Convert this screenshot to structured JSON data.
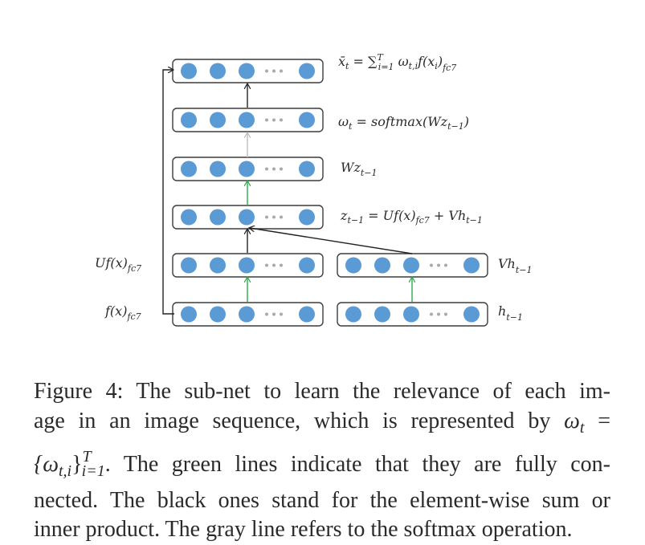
{
  "figure": {
    "colors": {
      "node": "#5b9bd5",
      "box_border": "#3c3c3c",
      "arrow_black": "#222222",
      "arrow_green": "#2eaa4a",
      "arrow_gray": "#bdbdbd",
      "dots": "#aaaaaa"
    },
    "labels": {
      "xbar": {
        "main": "x̄",
        "sub": "t",
        "eq": " = ∑",
        "sup_T": "T",
        "sub_i": "i=1",
        "rest": " ω",
        "rest_sub": "t,i",
        "rest2": "f(x",
        "rest2_sub": "i",
        "rest3": ")",
        "rest3_sub": "fc7"
      },
      "omega": {
        "main": "ω",
        "sub": "t",
        "eq": " = softmax(Wz",
        "eq_sub": "t−1",
        "close": ")"
      },
      "wz": {
        "main": "Wz",
        "sub": "t−1"
      },
      "z": {
        "main": "z",
        "sub": "t−1",
        "eq": " = Uf(x)",
        "eq_sub": "fc7",
        "rest": " + Vh",
        "rest_sub": "t−1"
      },
      "ufx": {
        "main": "Uf(x)",
        "sub": "fc7"
      },
      "fx": {
        "main": "f(x)",
        "sub": "fc7"
      },
      "vh": {
        "main": "Vh",
        "sub": "t−1"
      },
      "h": {
        "main": "h",
        "sub": "t−1"
      }
    }
  },
  "caption": {
    "line1": "Figure 4:  The sub-net to learn the relevance of each im-",
    "line2_a": "age in an image sequence, which is represented by ",
    "line2_omega": "ω",
    "line2_omega_sub": "t",
    "line2_eq": " =",
    "line3_set_open": "{ω",
    "line3_set_sub": "t,i",
    "line3_set_close": "}",
    "line3_sup": "T",
    "line3_sub": "i=1",
    "line3_rest": ". The green lines indicate that they are fully con-",
    "line4": "nected.  The black ones stand for the element-wise sum or",
    "line5": "inner product. The gray line refers to the softmax operation."
  }
}
